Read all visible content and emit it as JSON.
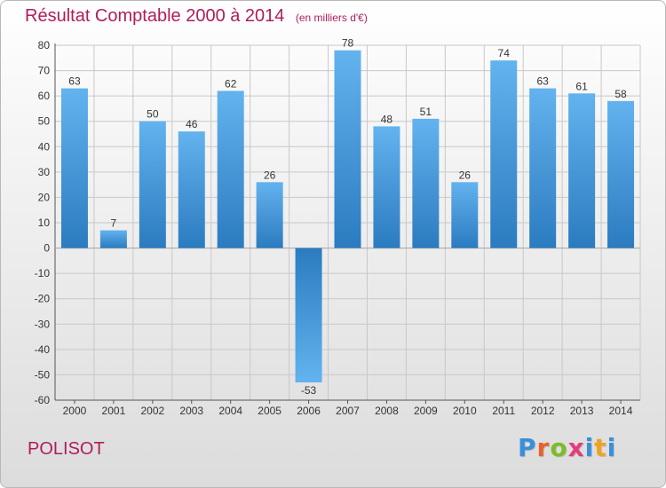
{
  "title": "Résultat Comptable 2000 à 2014",
  "unit": "(en milliers d'€)",
  "commune": "POLISOT",
  "logo": {
    "text": "Proxiti",
    "colors": [
      "#3a8fd9",
      "#e8612c",
      "#7cbc2a",
      "#e63a7a",
      "#3a8fd9",
      "#f2a31b",
      "#3a8fd9"
    ]
  },
  "colors": {
    "bar_light": "#63b3ef",
    "bar_dark": "#2b7bc0",
    "title": "#b01c5c",
    "grid": "#c8c8c8"
  },
  "chart_data": {
    "type": "bar",
    "categories": [
      "2000",
      "2001",
      "2002",
      "2003",
      "2004",
      "2005",
      "2006",
      "2007",
      "2008",
      "2009",
      "2010",
      "2011",
      "2012",
      "2013",
      "2014"
    ],
    "values": [
      63,
      7,
      50,
      46,
      62,
      26,
      -53,
      78,
      48,
      51,
      26,
      74,
      63,
      61,
      58
    ],
    "ylim": [
      -60,
      80
    ],
    "yticks": [
      80,
      70,
      60,
      50,
      40,
      30,
      20,
      10,
      0,
      -10,
      -20,
      -30,
      -40,
      -50,
      -60
    ],
    "grid": true,
    "xlabel": "",
    "ylabel": ""
  }
}
